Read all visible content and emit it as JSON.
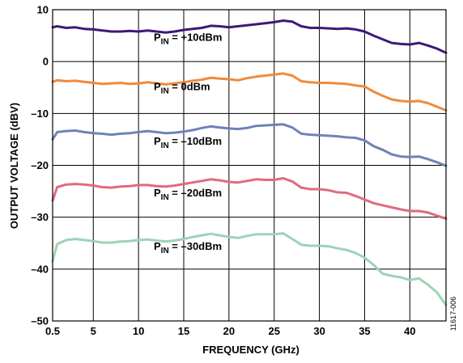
{
  "chart_data": {
    "type": "line",
    "xlabel": "FREQUENCY (GHz)",
    "ylabel": "OUTPUT VOLTAGE (dBV)",
    "xlim": [
      0.5,
      44
    ],
    "ylim": [
      -50,
      10
    ],
    "x_ticks": [
      0.5,
      5,
      10,
      15,
      20,
      25,
      30,
      35,
      40
    ],
    "x_tick_labels": [
      "0.5",
      "5",
      "10",
      "15",
      "20",
      "25",
      "30",
      "35",
      "40"
    ],
    "y_ticks": [
      10,
      0,
      -10,
      -20,
      -30,
      -40,
      -50
    ],
    "y_tick_labels": [
      "10",
      "0",
      "–10",
      "–20",
      "–30",
      "–40",
      "–50"
    ],
    "grid": true,
    "figure_id": "11617-006",
    "series": [
      {
        "name": "PIN = +10dBm",
        "label_main": "P",
        "label_sub": "IN",
        "label_rest": " = +10dBm",
        "color": "#3d1a78",
        "x": [
          0.5,
          1,
          2,
          3,
          4,
          5,
          6,
          7,
          8,
          9,
          10,
          11,
          12,
          13,
          14,
          15,
          16,
          17,
          18,
          19,
          20,
          21,
          22,
          23,
          24,
          25,
          26,
          27,
          28,
          29,
          30,
          31,
          32,
          33,
          34,
          35,
          36,
          37,
          38,
          39,
          40,
          41,
          42,
          43,
          44
        ],
        "y": [
          6.6,
          6.8,
          6.5,
          6.6,
          6.3,
          6.2,
          6.0,
          5.8,
          5.8,
          5.9,
          5.8,
          6.0,
          5.8,
          5.6,
          5.8,
          6.1,
          6.3,
          6.5,
          6.9,
          6.8,
          6.6,
          6.8,
          7.0,
          7.2,
          7.4,
          7.6,
          7.9,
          7.7,
          6.8,
          6.5,
          6.5,
          6.4,
          6.3,
          6.4,
          6.2,
          5.8,
          5.0,
          4.3,
          3.6,
          3.4,
          3.3,
          3.6,
          3.1,
          2.5,
          1.7
        ]
      },
      {
        "name": "PIN = 0dBm",
        "label_main": "P",
        "label_sub": "IN",
        "label_rest": " = 0dBm",
        "color": "#f08a3c",
        "x": [
          0.5,
          1,
          2,
          3,
          4,
          5,
          6,
          7,
          8,
          9,
          10,
          11,
          12,
          13,
          14,
          15,
          16,
          17,
          18,
          19,
          20,
          21,
          22,
          23,
          24,
          25,
          26,
          27,
          28,
          29,
          30,
          31,
          32,
          33,
          34,
          35,
          36,
          37,
          38,
          39,
          40,
          41,
          42,
          43,
          44
        ],
        "y": [
          -3.9,
          -3.6,
          -3.8,
          -3.7,
          -3.9,
          -4.1,
          -4.3,
          -4.2,
          -4.1,
          -4.3,
          -4.2,
          -4.0,
          -4.2,
          -4.4,
          -4.2,
          -4.0,
          -3.7,
          -3.5,
          -3.1,
          -3.3,
          -3.4,
          -3.6,
          -3.2,
          -2.9,
          -2.7,
          -2.5,
          -2.3,
          -2.7,
          -3.8,
          -4.0,
          -4.1,
          -4.1,
          -4.2,
          -4.3,
          -4.6,
          -4.8,
          -5.8,
          -6.6,
          -7.3,
          -7.6,
          -7.7,
          -7.6,
          -8.0,
          -8.7,
          -9.4
        ]
      },
      {
        "name": "PIN = –10dBm",
        "label_main": "P",
        "label_sub": "IN",
        "label_rest": " = –10dBm",
        "color": "#6d84b8",
        "x": [
          0.5,
          1,
          2,
          3,
          4,
          5,
          6,
          7,
          8,
          9,
          10,
          11,
          12,
          13,
          14,
          15,
          16,
          17,
          18,
          19,
          20,
          21,
          22,
          23,
          24,
          25,
          26,
          27,
          28,
          29,
          30,
          31,
          32,
          33,
          34,
          35,
          36,
          37,
          38,
          39,
          40,
          41,
          42,
          43,
          44
        ],
        "y": [
          -15.0,
          -13.6,
          -13.4,
          -13.3,
          -13.6,
          -13.8,
          -13.9,
          -14.1,
          -13.9,
          -13.8,
          -13.6,
          -13.4,
          -13.6,
          -13.8,
          -13.7,
          -13.5,
          -13.2,
          -12.8,
          -12.5,
          -12.7,
          -12.9,
          -13.0,
          -12.8,
          -12.4,
          -12.3,
          -12.2,
          -12.1,
          -12.7,
          -13.9,
          -14.1,
          -14.2,
          -14.3,
          -14.4,
          -14.6,
          -14.7,
          -15.2,
          -16.3,
          -17.0,
          -17.9,
          -18.3,
          -18.4,
          -18.3,
          -18.8,
          -19.4,
          -20.1
        ]
      },
      {
        "name": "PIN = –20dBm",
        "label_main": "P",
        "label_sub": "IN",
        "label_rest": " = –20dBm",
        "color": "#e06a80",
        "x": [
          0.5,
          1,
          2,
          3,
          4,
          5,
          6,
          7,
          8,
          9,
          10,
          11,
          12,
          13,
          14,
          15,
          16,
          17,
          18,
          19,
          20,
          21,
          22,
          23,
          24,
          25,
          26,
          27,
          28,
          29,
          30,
          31,
          32,
          33,
          34,
          35,
          36,
          37,
          38,
          39,
          40,
          41,
          42,
          43,
          44
        ],
        "y": [
          -26.8,
          -24.2,
          -23.7,
          -23.6,
          -23.7,
          -23.9,
          -24.2,
          -24.3,
          -24.1,
          -24.0,
          -23.8,
          -23.8,
          -24.0,
          -24.1,
          -23.9,
          -23.6,
          -23.3,
          -23.0,
          -22.7,
          -22.9,
          -23.2,
          -23.3,
          -23.0,
          -22.7,
          -22.8,
          -22.8,
          -22.5,
          -23.1,
          -24.3,
          -24.6,
          -24.6,
          -24.8,
          -25.2,
          -25.3,
          -25.9,
          -26.6,
          -27.3,
          -27.7,
          -28.1,
          -28.5,
          -28.8,
          -28.8,
          -29.1,
          -29.7,
          -30.3
        ]
      },
      {
        "name": "PIN = –30dBm",
        "label_main": "P",
        "label_sub": "IN",
        "label_rest": " = –30dBm",
        "color": "#9dd3b6",
        "x": [
          0.5,
          1,
          2,
          3,
          4,
          5,
          6,
          7,
          8,
          9,
          10,
          11,
          12,
          13,
          14,
          15,
          16,
          17,
          18,
          19,
          20,
          21,
          22,
          23,
          24,
          25,
          26,
          27,
          28,
          29,
          30,
          31,
          32,
          33,
          34,
          35,
          36,
          37,
          38,
          39,
          40,
          41,
          42,
          43,
          44
        ],
        "y": [
          -38.5,
          -35.2,
          -34.4,
          -34.2,
          -34.4,
          -34.6,
          -34.9,
          -34.9,
          -34.7,
          -34.6,
          -34.4,
          -34.3,
          -34.5,
          -34.7,
          -34.5,
          -34.2,
          -33.8,
          -33.5,
          -33.2,
          -33.5,
          -33.8,
          -34.0,
          -33.6,
          -33.3,
          -33.3,
          -33.3,
          -33.1,
          -34.2,
          -35.3,
          -35.5,
          -35.5,
          -35.6,
          -36.0,
          -36.3,
          -36.9,
          -37.8,
          -39.2,
          -40.9,
          -41.3,
          -41.6,
          -42.1,
          -41.8,
          -43.0,
          -44.5,
          -46.9
        ]
      }
    ]
  }
}
